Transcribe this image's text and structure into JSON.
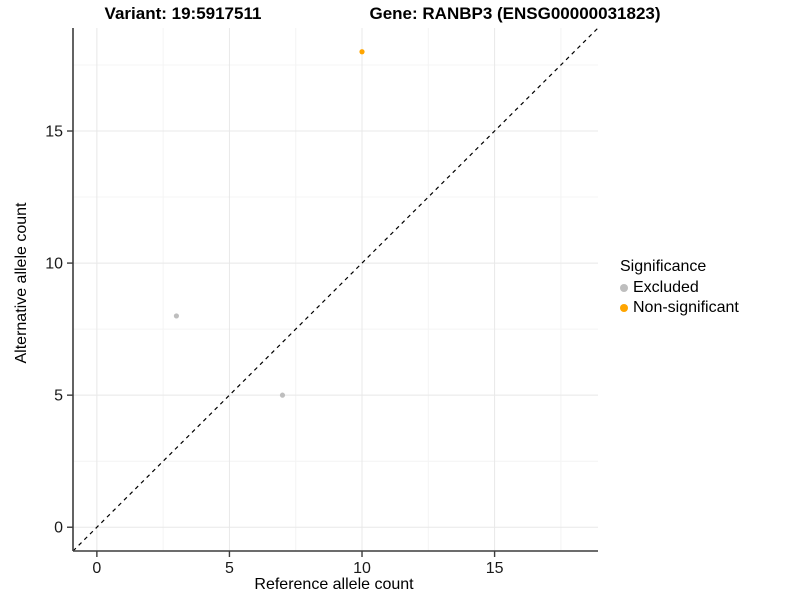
{
  "titles": {
    "left": "Variant: 19:5917511",
    "right": "Gene: RANBP3 (ENSG00000031823)"
  },
  "chart_data": {
    "type": "scatter",
    "xlabel": "Reference allele count",
    "ylabel": "Alternative allele count",
    "xlim": [
      -0.9,
      18.9
    ],
    "ylim": [
      -0.9,
      18.9
    ],
    "x_ticks": [
      0,
      5,
      10,
      15
    ],
    "y_ticks": [
      0,
      5,
      10,
      15
    ],
    "x_minor": [
      2.5,
      7.5,
      12.5,
      17.5
    ],
    "y_minor": [
      2.5,
      7.5,
      12.5,
      17.5
    ],
    "grid": true,
    "identity_line": {
      "slope": 1,
      "intercept": 0,
      "style": "dashed",
      "color": "#000000"
    },
    "series": [
      {
        "name": "Excluded",
        "color": "#BEBEBE",
        "points": [
          {
            "x": 3,
            "y": 8
          },
          {
            "x": 7,
            "y": 5
          }
        ]
      },
      {
        "name": "Non-significant",
        "color": "#FFA500",
        "points": [
          {
            "x": 10,
            "y": 18
          }
        ]
      }
    ],
    "legend": {
      "title": "Significance",
      "position": "right",
      "entries": [
        {
          "label": "Excluded",
          "color": "#BEBEBE"
        },
        {
          "label": "Non-significant",
          "color": "#FFA500"
        }
      ]
    }
  },
  "colors": {
    "background": "#FFFFFF",
    "grid_major": "#E8E8E8",
    "grid_minor": "#F4F4F4",
    "axis_line": "#3C3C3C",
    "tick_text": "#1A1A1A"
  }
}
